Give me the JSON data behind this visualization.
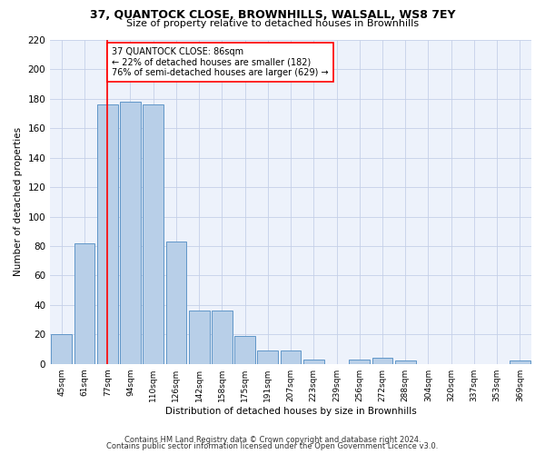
{
  "title": "37, QUANTOCK CLOSE, BROWNHILLS, WALSALL, WS8 7EY",
  "subtitle": "Size of property relative to detached houses in Brownhills",
  "xlabel": "Distribution of detached houses by size in Brownhills",
  "ylabel": "Number of detached properties",
  "categories": [
    "45sqm",
    "61sqm",
    "77sqm",
    "94sqm",
    "110sqm",
    "126sqm",
    "142sqm",
    "158sqm",
    "175sqm",
    "191sqm",
    "207sqm",
    "223sqm",
    "239sqm",
    "256sqm",
    "272sqm",
    "288sqm",
    "304sqm",
    "320sqm",
    "337sqm",
    "353sqm",
    "369sqm"
  ],
  "values": [
    20,
    82,
    176,
    178,
    176,
    83,
    36,
    36,
    19,
    9,
    9,
    3,
    0,
    3,
    4,
    2,
    0,
    0,
    0,
    0,
    2
  ],
  "bar_color": "#b8cfe8",
  "bar_edge_color": "#6096c8",
  "red_line_x": 2,
  "annotation_text": "37 QUANTOCK CLOSE: 86sqm\n← 22% of detached houses are smaller (182)\n76% of semi-detached houses are larger (629) →",
  "footnote1": "Contains HM Land Registry data © Crown copyright and database right 2024.",
  "footnote2": "Contains public sector information licensed under the Open Government Licence v3.0.",
  "ylim": [
    0,
    220
  ],
  "yticks": [
    0,
    20,
    40,
    60,
    80,
    100,
    120,
    140,
    160,
    180,
    200,
    220
  ],
  "bg_color": "#edf2fb",
  "grid_color": "#c5d0e8"
}
